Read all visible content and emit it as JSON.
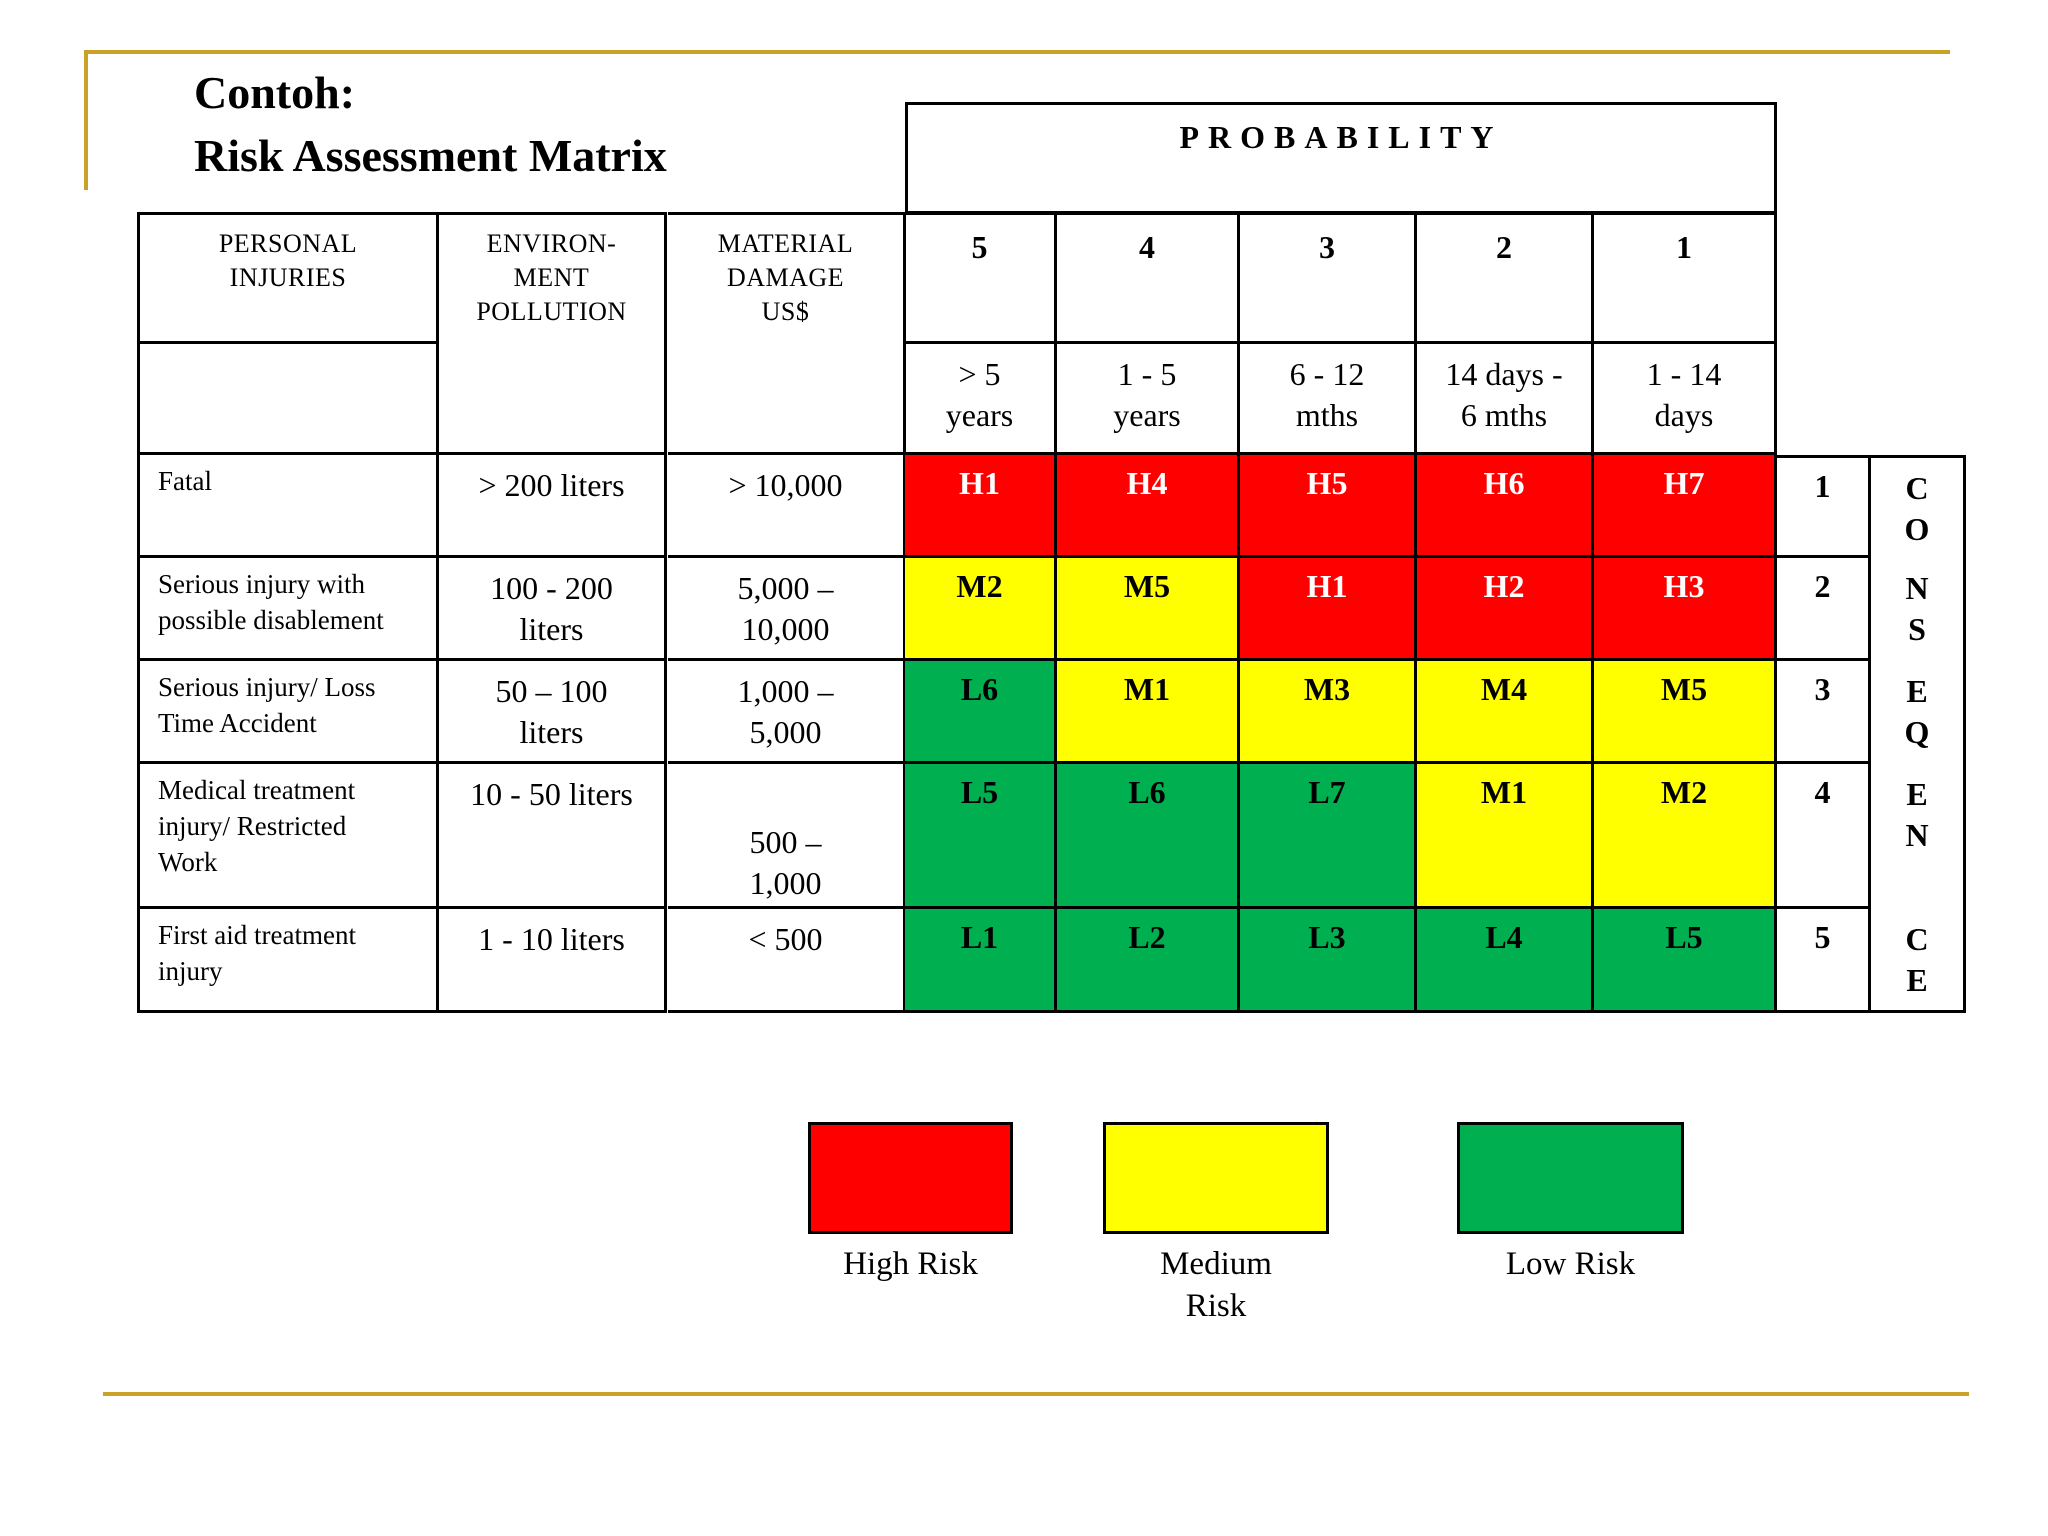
{
  "title": {
    "line1": "Contoh:",
    "line2": "Risk Assessment Matrix"
  },
  "probability_label": "PROBABILITY",
  "headers": {
    "personal_injuries": "PERSONAL\nINJURIES",
    "environment_pollution": "ENVIRON-\nMENT\nPOLLUTION",
    "material_damage": "MATERIAL\nDAMAGE\nUS$"
  },
  "probability_levels": [
    "5",
    "4",
    "3",
    "2",
    "1"
  ],
  "probability_ranges": [
    "> 5\nyears",
    "1 - 5\nyears",
    "6 - 12\nmths",
    "14 days -\n6 mths",
    "1 - 14\ndays"
  ],
  "consequence_label": [
    "C\nO",
    "N\nS",
    "E\nQ",
    "E\nN",
    "C\nE"
  ],
  "rows": [
    {
      "injury": "Fatal",
      "pollution": "> 200 liters",
      "damage": "> 10,000",
      "level": "1",
      "cells": [
        {
          "code": "H1",
          "risk": "high"
        },
        {
          "code": "H4",
          "risk": "high"
        },
        {
          "code": "H5",
          "risk": "high"
        },
        {
          "code": "H6",
          "risk": "high"
        },
        {
          "code": "H7",
          "risk": "high"
        }
      ]
    },
    {
      "injury": "Serious injury with\npossible disablement",
      "pollution": "100 - 200\nliters",
      "damage": "5,000 –\n10,000",
      "level": "2",
      "cells": [
        {
          "code": "M2",
          "risk": "medium"
        },
        {
          "code": "M5",
          "risk": "medium"
        },
        {
          "code": "H1",
          "risk": "high"
        },
        {
          "code": "H2",
          "risk": "high"
        },
        {
          "code": "H3",
          "risk": "high"
        }
      ]
    },
    {
      "injury": "Serious injury/ Loss\nTime Accident",
      "pollution": "50 – 100\nliters",
      "damage": "1,000 –\n5,000",
      "level": "3",
      "cells": [
        {
          "code": "L6",
          "risk": "low"
        },
        {
          "code": "M1",
          "risk": "medium"
        },
        {
          "code": "M3",
          "risk": "medium"
        },
        {
          "code": "M4",
          "risk": "medium"
        },
        {
          "code": "M5",
          "risk": "medium"
        }
      ]
    },
    {
      "injury": "Medical treatment\ninjury/ Restricted\nWork",
      "pollution": "10 - 50 liters",
      "damage": "500 –\n1,000",
      "level": "4",
      "cells": [
        {
          "code": "L5",
          "risk": "low"
        },
        {
          "code": "L6",
          "risk": "low"
        },
        {
          "code": "L7",
          "risk": "low"
        },
        {
          "code": "M1",
          "risk": "medium"
        },
        {
          "code": "M2",
          "risk": "medium"
        }
      ]
    },
    {
      "injury": "First aid treatment\ninjury",
      "pollution": "1 - 10 liters",
      "damage": "< 500",
      "level": "5",
      "cells": [
        {
          "code": "L1",
          "risk": "low"
        },
        {
          "code": "L2",
          "risk": "low"
        },
        {
          "code": "L3",
          "risk": "low"
        },
        {
          "code": "L4",
          "risk": "low"
        },
        {
          "code": "L5",
          "risk": "low"
        }
      ]
    }
  ],
  "legend": [
    {
      "label": "High Risk",
      "color": "#ff0000"
    },
    {
      "label": "Medium\nRisk",
      "color": "#ffff00"
    },
    {
      "label": "Low Risk",
      "color": "#00b050"
    }
  ],
  "colors": {
    "accent_rule": "#c9a227",
    "high": "#ff0000",
    "medium": "#ffff00",
    "low": "#00b050"
  }
}
